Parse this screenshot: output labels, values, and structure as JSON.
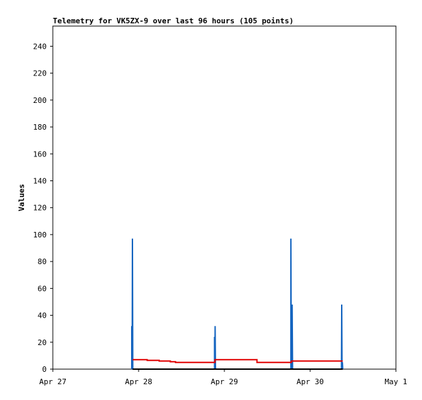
{
  "chart_data": {
    "type": "line",
    "title": "Telemetry for VK5ZX-9 over last 96 hours (105 points)",
    "y_label": "Values",
    "xlim": [
      0,
      4
    ],
    "xticks": [
      {
        "value": 0,
        "label": "Apr 27"
      },
      {
        "value": 1,
        "label": "Apr 28"
      },
      {
        "value": 2,
        "label": "Apr 29"
      },
      {
        "value": 3,
        "label": "Apr 30"
      },
      {
        "value": 4,
        "label": "May 1"
      }
    ],
    "ylim": [
      0,
      255
    ],
    "yticks": [
      0,
      20,
      40,
      60,
      80,
      100,
      120,
      140,
      160,
      180,
      200,
      220,
      240
    ],
    "series": [
      {
        "color": "#1565c0",
        "x": [
          0.92,
          0.92,
          0.925,
          0.928,
          0.932,
          1.885,
          1.885,
          1.889,
          1.892,
          1.896,
          2.775,
          2.775,
          2.78,
          2.79,
          2.795,
          3.365,
          3.368,
          3.372,
          3.376,
          3.38
        ],
        "values": [
          0,
          32,
          0,
          97,
          0,
          0,
          24,
          0,
          32,
          0,
          0,
          97,
          0,
          48,
          0,
          0,
          48,
          0,
          5,
          0
        ]
      },
      {
        "color": "#e00000",
        "x": [
          0.93,
          1.1,
          1.1,
          1.24,
          1.24,
          1.37,
          1.37,
          1.43,
          1.43,
          1.89,
          1.89,
          2.38,
          2.38,
          2.78,
          2.78,
          3.38
        ],
        "values": [
          7,
          7,
          6.5,
          6.5,
          6,
          6,
          5.5,
          5.5,
          5,
          5,
          7,
          7,
          5,
          5,
          6,
          6
        ]
      },
      {
        "color": "#000000",
        "x": [
          0.93,
          3.38
        ],
        "values": [
          0,
          0
        ]
      }
    ]
  }
}
